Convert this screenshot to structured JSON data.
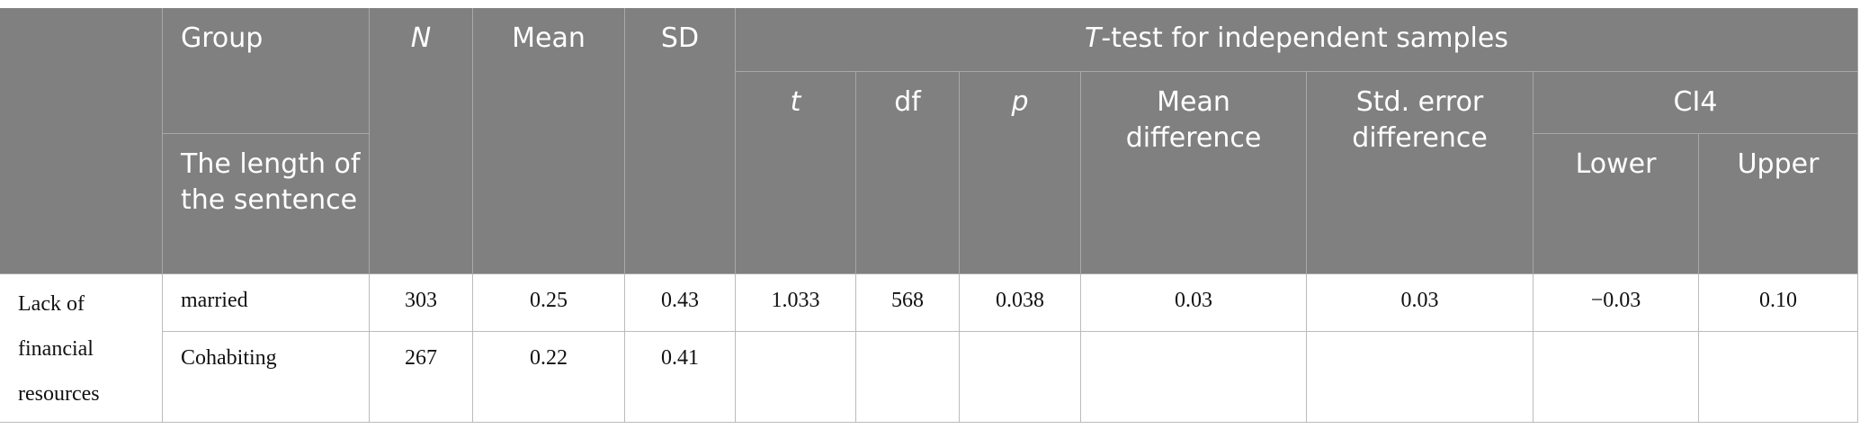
{
  "headers": {
    "group": "Group",
    "sentence_length": "The length of the sentence",
    "n": "N",
    "mean": "Mean",
    "sd": "SD",
    "ttest": "T-test for independent samples",
    "t": "t",
    "df": "df",
    "p": "p",
    "mean_difference": "Mean difference",
    "std_error_difference": "Std. error difference",
    "ci": "CI4",
    "lower": "Lower",
    "upper": "Upper"
  },
  "rows": [
    {
      "category": "Lack of financial resources",
      "group": "married",
      "n": "303",
      "mean": "0.25",
      "sd": "0.43",
      "t": "1.033",
      "df": "568",
      "p": "0.038",
      "mean_difference": "0.03",
      "std_error_difference": "0.03",
      "lower": "−0.03",
      "upper": "0.10"
    },
    {
      "group": "Cohabiting",
      "n": "267",
      "mean": "0.22",
      "sd": "0.41"
    }
  ]
}
